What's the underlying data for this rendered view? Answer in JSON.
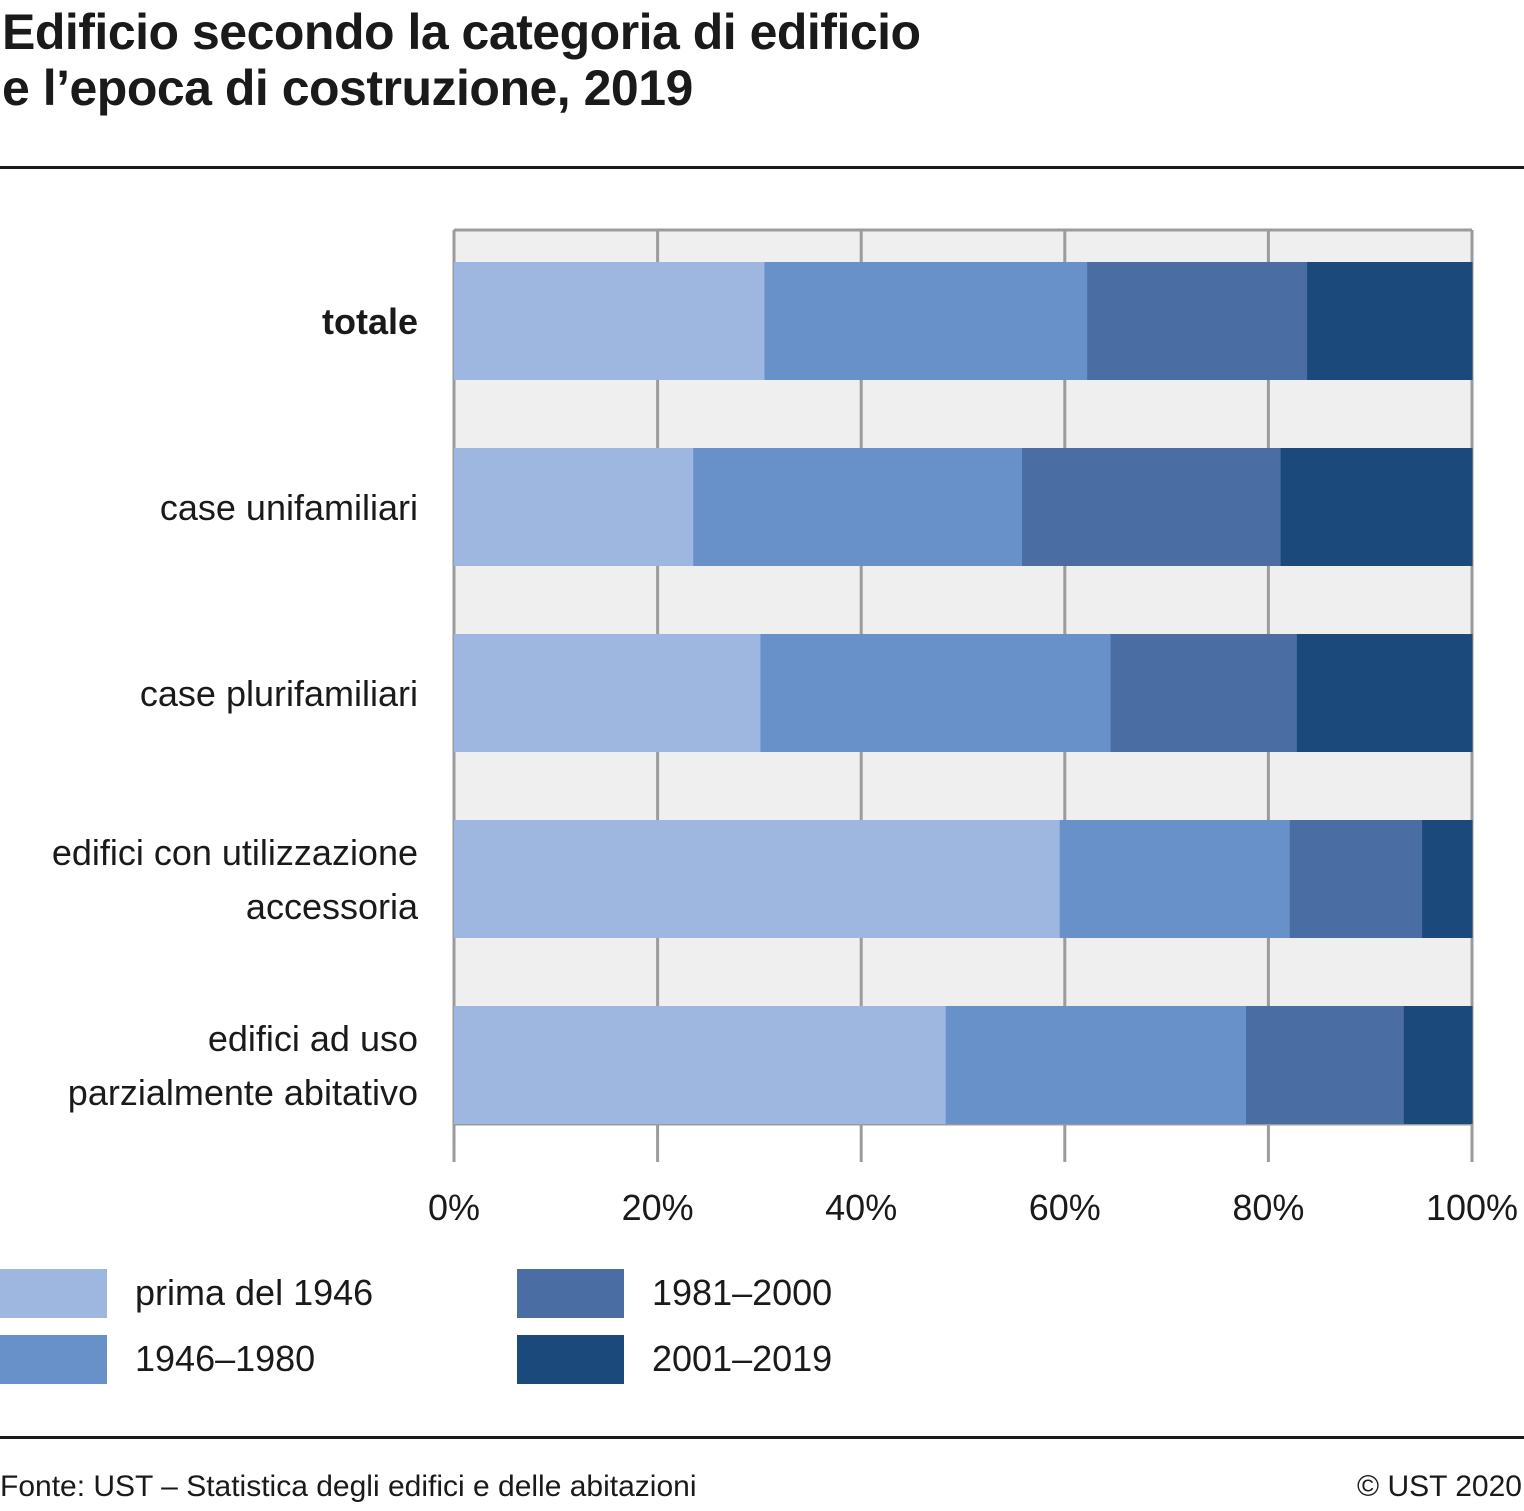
{
  "title_lines": [
    "Edificio secondo la categoria di edificio",
    "e l’epoca di costruzione, 2019"
  ],
  "footer": {
    "source": "Fonte: UST – Statistica degli edifici e delle abitazioni",
    "copyright": "© UST 2020"
  },
  "colors": {
    "plot_background": "#efefef",
    "gridline": "#9b9b9b",
    "series": [
      "#9db7e0",
      "#6891ca",
      "#4a6da3",
      "#1c497b"
    ]
  },
  "chart_data": {
    "type": "bar",
    "orientation": "horizontal",
    "stacked": true,
    "title": "Edificio secondo la categoria di edificio e l’epoca di costruzione, 2019",
    "xlabel": "",
    "ylabel": "",
    "xlim": [
      0,
      100
    ],
    "x_unit": "%",
    "grid": true,
    "x_ticks": [
      0,
      20,
      40,
      60,
      80,
      100
    ],
    "x_tick_labels": [
      "0%",
      "20%",
      "40%",
      "60%",
      "80%",
      "100%"
    ],
    "categories": [
      {
        "label_lines": [
          "totale"
        ],
        "bold": true
      },
      {
        "label_lines": [
          "case unifamiliari"
        ],
        "bold": false
      },
      {
        "label_lines": [
          "case plurifamiliari"
        ],
        "bold": false
      },
      {
        "label_lines": [
          "edifici con utilizzazione",
          "accessoria"
        ],
        "bold": false
      },
      {
        "label_lines": [
          "edifici ad uso",
          "parzialmente abitativo"
        ],
        "bold": false
      }
    ],
    "series": [
      {
        "name": "prima del 1946",
        "values": [
          30.5,
          23.5,
          30.1,
          59.5,
          48.3
        ]
      },
      {
        "name": "1946–1980",
        "values": [
          31.7,
          32.3,
          34.4,
          22.6,
          29.5
        ]
      },
      {
        "name": "1981–2000",
        "values": [
          21.6,
          25.4,
          18.3,
          13.0,
          15.5
        ]
      },
      {
        "name": "2001–2019",
        "values": [
          16.2,
          18.8,
          17.2,
          4.9,
          6.7
        ]
      }
    ],
    "legend_position": "bottom-left"
  }
}
